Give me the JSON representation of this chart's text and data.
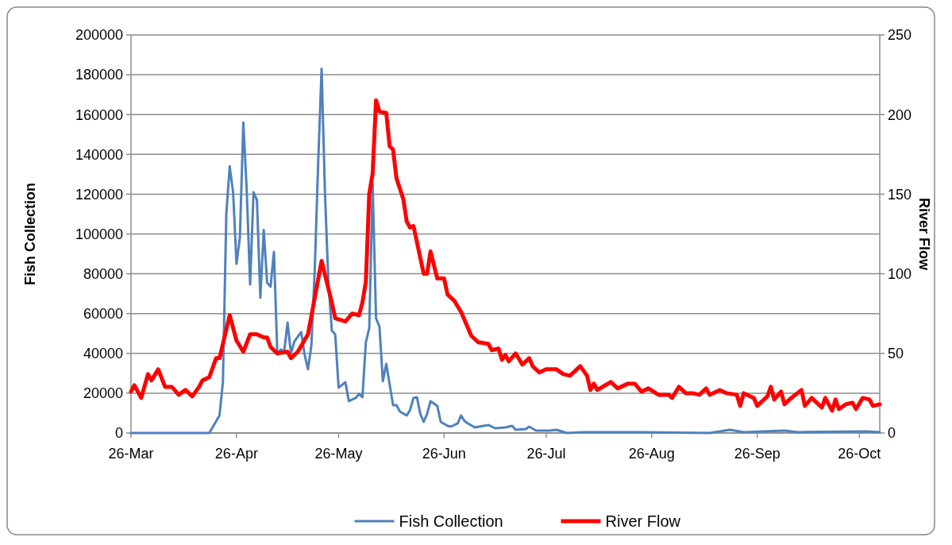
{
  "chart_data": {
    "type": "line",
    "ylabel": "Fish Collection",
    "y2label": "River Flow",
    "xlim": [
      "--03-26",
      "--11-01"
    ],
    "xticks": [
      {
        "value": "--03-26",
        "label": "26-Mar"
      },
      {
        "value": "--04-26",
        "label": "26-Apr"
      },
      {
        "value": "--05-26",
        "label": "26-May"
      },
      {
        "value": "--06-26",
        "label": "26-Jun"
      },
      {
        "value": "--07-26",
        "label": "26-Jul"
      },
      {
        "value": "--08-26",
        "label": "26-Aug"
      },
      {
        "value": "--09-26",
        "label": "26-Sep"
      },
      {
        "value": "--10-26",
        "label": "26-Oct"
      }
    ],
    "ylim": [
      0,
      200000
    ],
    "yticks": [
      0,
      20000,
      40000,
      60000,
      80000,
      100000,
      120000,
      140000,
      160000,
      180000,
      200000
    ],
    "y2lim": [
      0,
      250
    ],
    "y2ticks": [
      0,
      50,
      100,
      150,
      200,
      250
    ],
    "grid": "y",
    "legend": "bottom",
    "marker": "none",
    "line_style": "solid",
    "series": [
      {
        "name": "Fish Collection",
        "color": "#4f81bd",
        "x": [
          "--03-26",
          "--04-18",
          "--04-21",
          "--04-22",
          "--04-23",
          "--04-24",
          "--04-25",
          "--04-26",
          "--04-27",
          "--04-28",
          "--04-29",
          "--04-30",
          "--05-01",
          "--05-02",
          "--05-03",
          "--05-04",
          "--05-05",
          "--05-06",
          "--05-07",
          "--05-08",
          "--05-09",
          "--05-10",
          "--05-11",
          "--05-12",
          "--05-13",
          "--05-15",
          "--05-16",
          "--05-17",
          "--05-18",
          "--05-19",
          "--05-20",
          "--05-21",
          "--05-22",
          "--05-23",
          "--05-24",
          "--05-25",
          "--05-26",
          "--05-28",
          "--05-29",
          "--05-31",
          "--06-01",
          "--06-02",
          "--06-03",
          "--06-04",
          "--06-05",
          "--06-06",
          "--06-07",
          "--06-08",
          "--06-09",
          "--06-11",
          "--06-12",
          "--06-13",
          "--06-15",
          "--06-16",
          "--06-17",
          "--06-18",
          "--06-19",
          "--06-20",
          "--06-21",
          "--06-22",
          "--06-24",
          "--06-25",
          "--06-27",
          "--06-28",
          "--06-30",
          "--07-01",
          "--07-02",
          "--07-03",
          "--07-05",
          "--07-09",
          "--07-11",
          "--07-14",
          "--07-16",
          "--07-17",
          "--07-20",
          "--07-21",
          "--07-23",
          "--07-27",
          "--07-29",
          "--08-01",
          "--08-06",
          "--08-23",
          "--09-12",
          "--09-18",
          "--09-22",
          "--10-04",
          "--10-08",
          "--10-28",
          "--11-01"
        ],
        "values": [
          0,
          0,
          8800,
          25500,
          110000,
          134000,
          121000,
          85000,
          98500,
          156000,
          122000,
          74600,
          121000,
          117000,
          68000,
          102000,
          75500,
          73500,
          91000,
          39500,
          42000,
          40700,
          55500,
          40000,
          46000,
          50700,
          39500,
          32000,
          44000,
          82600,
          136000,
          183000,
          120000,
          76000,
          51500,
          49500,
          22800,
          25500,
          16000,
          17600,
          19600,
          18000,
          45500,
          52700,
          125000,
          57500,
          53500,
          26000,
          34700,
          14000,
          14000,
          10800,
          8800,
          11600,
          17600,
          18000,
          9600,
          5600,
          9600,
          16000,
          13600,
          5600,
          3600,
          3200,
          4800,
          8800,
          6000,
          4800,
          2800,
          4000,
          2400,
          2800,
          3600,
          1600,
          2000,
          3200,
          1200,
          1200,
          1600,
          0,
          400,
          400,
          0,
          1600,
          400,
          1200,
          400,
          800,
          400
        ]
      },
      {
        "name": "River Flow",
        "color": "#ff0000",
        "axis": "y2",
        "x": [
          "--03-26",
          "--03-27",
          "--03-29",
          "--03-31",
          "--04-01",
          "--04-03",
          "--04-05",
          "--04-07",
          "--04-09",
          "--04-11",
          "--04-13",
          "--04-15",
          "--04-16",
          "--04-18",
          "--04-20",
          "--04-21",
          "--04-24",
          "--04-26",
          "--04-28",
          "--04-30",
          "--05-02",
          "--05-04",
          "--05-05",
          "--05-06",
          "--05-08",
          "--05-11",
          "--05-12",
          "--05-14",
          "--05-17",
          "--05-19",
          "--05-21",
          "--05-24",
          "--05-25",
          "--05-28",
          "--05-30",
          "--06-01",
          "--06-02",
          "--06-03",
          "--06-04",
          "--06-05",
          "--06-06",
          "--06-07",
          "--06-09",
          "--06-10",
          "--06-11",
          "--06-12",
          "--06-14",
          "--06-15",
          "--06-16",
          "--06-17",
          "--06-18",
          "--06-20",
          "--06-21",
          "--06-22",
          "--06-24",
          "--06-26",
          "--06-27",
          "--06-29",
          "--07-01",
          "--07-04",
          "--07-06",
          "--07-09",
          "--07-10",
          "--07-12",
          "--07-13",
          "--07-14",
          "--07-15",
          "--07-17",
          "--07-19",
          "--07-21",
          "--07-22",
          "--07-24",
          "--07-26",
          "--07-29",
          "--07-31",
          "--08-02",
          "--08-03",
          "--08-05",
          "--08-07",
          "--08-08",
          "--08-09",
          "--08-10",
          "--08-14",
          "--08-16",
          "--08-19",
          "--08-21",
          "--08-23",
          "--08-25",
          "--08-28",
          "--08-31",
          "--09-01",
          "--09-03",
          "--09-05",
          "--09-07",
          "--09-09",
          "--09-11",
          "--09-12",
          "--09-15",
          "--09-17",
          "--09-20",
          "--09-21",
          "--09-22",
          "--09-25",
          "--09-26",
          "--09-29",
          "--09-30",
          "--10-01",
          "--10-03",
          "--10-04",
          "--10-06",
          "--10-09",
          "--10-10",
          "--10-12",
          "--10-15",
          "--10-16",
          "--10-18",
          "--10-19",
          "--10-20",
          "--10-22",
          "--10-24",
          "--10-25",
          "--10-27",
          "--10-29",
          "--10-30",
          "--11-01"
        ],
        "values": [
          26,
          30,
          22,
          37,
          33,
          40,
          29,
          29,
          24,
          27,
          23,
          29,
          33,
          35,
          47,
          47,
          74,
          58,
          51,
          62,
          62,
          60,
          60,
          54,
          50,
          51,
          47,
          51,
          62,
          85,
          108,
          82,
          72,
          70,
          75,
          74,
          82,
          95,
          150,
          163,
          209,
          202,
          201,
          180,
          178,
          160,
          147,
          133,
          129,
          130,
          120,
          100,
          100,
          114,
          97,
          97,
          87,
          83,
          76,
          61,
          57,
          56,
          52,
          53,
          46,
          49,
          45,
          50,
          43,
          47,
          42,
          38,
          40,
          40,
          37,
          36,
          38,
          42,
          36,
          27,
          31,
          27,
          32,
          28,
          31,
          31,
          26,
          28,
          24,
          24,
          22,
          29,
          25,
          25,
          24,
          28,
          24,
          27,
          25,
          24,
          17,
          25,
          22,
          17,
          23,
          29,
          21,
          26,
          18,
          22,
          27,
          17,
          22,
          16,
          22,
          14,
          21,
          15,
          18,
          19,
          15,
          22,
          21,
          17,
          18
        ]
      }
    ]
  }
}
